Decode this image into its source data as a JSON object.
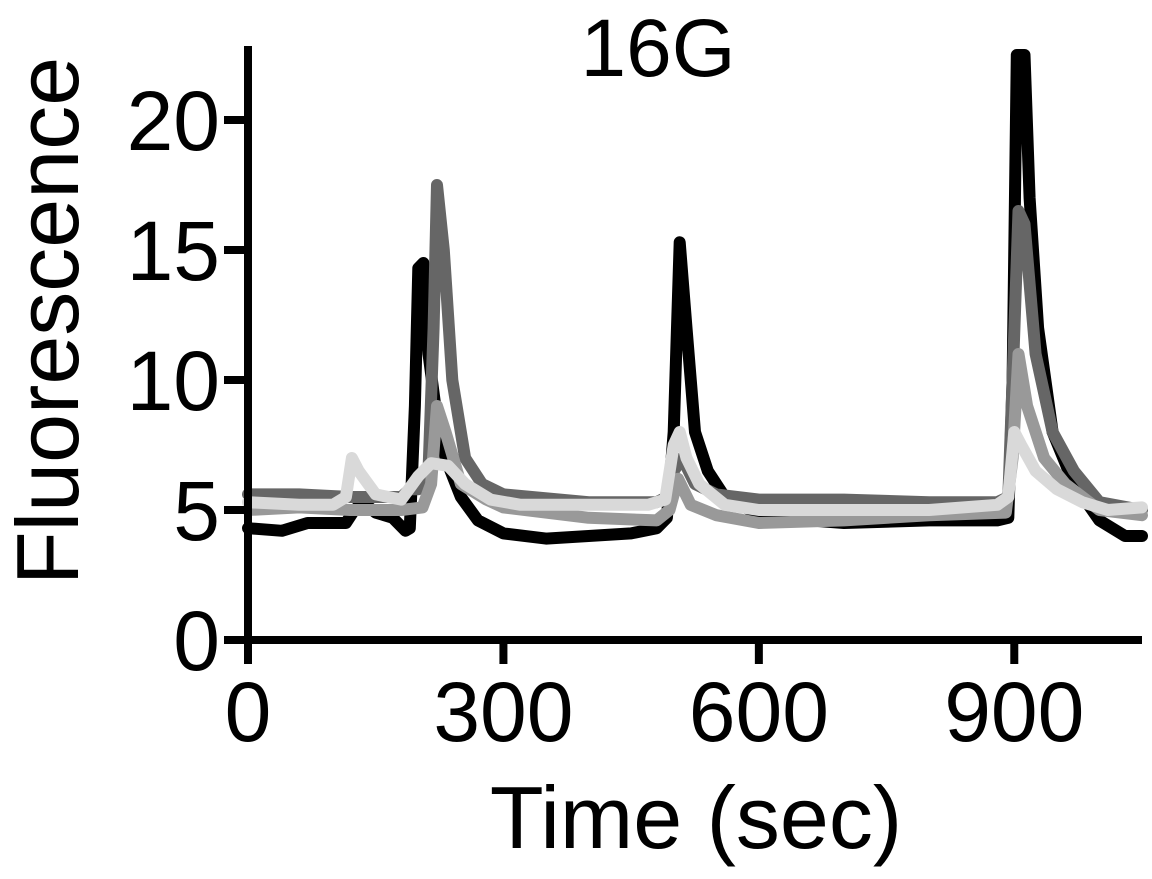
{
  "chart_data": {
    "type": "line",
    "title": "16G",
    "xlabel": "Time (sec)",
    "ylabel": "Fluorescence",
    "xlim": [
      0,
      1050
    ],
    "ylim": [
      0,
      23
    ],
    "xticks": [
      0,
      300,
      600,
      900
    ],
    "yticks": [
      0,
      5,
      10,
      15,
      20
    ],
    "grid": false,
    "legend": "none",
    "colors": [
      "#000000",
      "#666666",
      "#999999",
      "#d9d9d9"
    ],
    "series": [
      {
        "color": "#000000",
        "points": [
          [
            0,
            4.3
          ],
          [
            40,
            4.2
          ],
          [
            70,
            4.5
          ],
          [
            100,
            4.5
          ],
          [
            115,
            4.5
          ],
          [
            125,
            5.0
          ],
          [
            135,
            5.3
          ],
          [
            150,
            4.9
          ],
          [
            170,
            4.7
          ],
          [
            185,
            4.2
          ],
          [
            190,
            4.3
          ],
          [
            196,
            9.0
          ],
          [
            200,
            14.3
          ],
          [
            206,
            14.5
          ],
          [
            212,
            11.0
          ],
          [
            220,
            9.0
          ],
          [
            232,
            7.0
          ],
          [
            250,
            5.5
          ],
          [
            270,
            4.6
          ],
          [
            300,
            4.1
          ],
          [
            350,
            3.9
          ],
          [
            400,
            4.0
          ],
          [
            450,
            4.1
          ],
          [
            480,
            4.3
          ],
          [
            492,
            4.7
          ],
          [
            500,
            8.0
          ],
          [
            507,
            15.3
          ],
          [
            515,
            12.0
          ],
          [
            525,
            8.0
          ],
          [
            540,
            6.5
          ],
          [
            560,
            5.5
          ],
          [
            590,
            5.0
          ],
          [
            620,
            4.7
          ],
          [
            700,
            4.5
          ],
          [
            800,
            4.6
          ],
          [
            880,
            4.6
          ],
          [
            893,
            4.7
          ],
          [
            898,
            10.0
          ],
          [
            903,
            22.5
          ],
          [
            912,
            22.5
          ],
          [
            918,
            17.0
          ],
          [
            928,
            12.0
          ],
          [
            945,
            8.0
          ],
          [
            970,
            6.0
          ],
          [
            1000,
            4.6
          ],
          [
            1030,
            4.0
          ],
          [
            1050,
            4.0
          ]
        ]
      },
      {
        "color": "#666666",
        "points": [
          [
            0,
            5.6
          ],
          [
            60,
            5.6
          ],
          [
            120,
            5.5
          ],
          [
            180,
            5.5
          ],
          [
            190,
            5.8
          ],
          [
            200,
            5.8
          ],
          [
            212,
            6.5
          ],
          [
            218,
            12.0
          ],
          [
            222,
            17.5
          ],
          [
            230,
            15.0
          ],
          [
            240,
            10.0
          ],
          [
            255,
            7.0
          ],
          [
            275,
            6.0
          ],
          [
            300,
            5.6
          ],
          [
            400,
            5.3
          ],
          [
            480,
            5.3
          ],
          [
            492,
            5.5
          ],
          [
            500,
            6.5
          ],
          [
            510,
            7.0
          ],
          [
            525,
            6.0
          ],
          [
            550,
            5.6
          ],
          [
            600,
            5.4
          ],
          [
            700,
            5.4
          ],
          [
            800,
            5.3
          ],
          [
            880,
            5.3
          ],
          [
            893,
            5.5
          ],
          [
            898,
            10.0
          ],
          [
            905,
            16.5
          ],
          [
            912,
            16.0
          ],
          [
            925,
            11.0
          ],
          [
            945,
            8.0
          ],
          [
            970,
            6.5
          ],
          [
            1000,
            5.3
          ],
          [
            1050,
            5.0
          ]
        ]
      },
      {
        "color": "#999999",
        "points": [
          [
            0,
            5.0
          ],
          [
            60,
            5.1
          ],
          [
            120,
            5.0
          ],
          [
            180,
            5.0
          ],
          [
            205,
            5.1
          ],
          [
            215,
            6.0
          ],
          [
            222,
            9.0
          ],
          [
            232,
            8.0
          ],
          [
            250,
            6.0
          ],
          [
            280,
            5.4
          ],
          [
            300,
            5.1
          ],
          [
            400,
            4.7
          ],
          [
            480,
            4.6
          ],
          [
            495,
            5.0
          ],
          [
            505,
            6.2
          ],
          [
            520,
            5.2
          ],
          [
            550,
            4.8
          ],
          [
            600,
            4.5
          ],
          [
            700,
            4.6
          ],
          [
            800,
            4.8
          ],
          [
            890,
            4.9
          ],
          [
            898,
            7.0
          ],
          [
            905,
            11.0
          ],
          [
            915,
            9.0
          ],
          [
            935,
            7.0
          ],
          [
            960,
            6.0
          ],
          [
            1000,
            5.0
          ],
          [
            1050,
            4.8
          ]
        ]
      },
      {
        "color": "#d9d9d9",
        "points": [
          [
            0,
            5.3
          ],
          [
            60,
            5.2
          ],
          [
            100,
            5.2
          ],
          [
            115,
            5.5
          ],
          [
            122,
            7.0
          ],
          [
            130,
            6.5
          ],
          [
            150,
            5.6
          ],
          [
            180,
            5.4
          ],
          [
            200,
            6.3
          ],
          [
            215,
            6.8
          ],
          [
            235,
            6.7
          ],
          [
            255,
            6.0
          ],
          [
            285,
            5.4
          ],
          [
            320,
            5.2
          ],
          [
            400,
            5.2
          ],
          [
            470,
            5.2
          ],
          [
            490,
            5.4
          ],
          [
            500,
            7.5
          ],
          [
            507,
            8.0
          ],
          [
            515,
            7.0
          ],
          [
            530,
            6.0
          ],
          [
            560,
            5.2
          ],
          [
            600,
            5.0
          ],
          [
            700,
            5.0
          ],
          [
            800,
            5.0
          ],
          [
            880,
            5.2
          ],
          [
            893,
            5.5
          ],
          [
            900,
            8.0
          ],
          [
            908,
            7.5
          ],
          [
            925,
            6.5
          ],
          [
            950,
            5.8
          ],
          [
            980,
            5.3
          ],
          [
            1010,
            5.0
          ],
          [
            1050,
            5.1
          ]
        ]
      }
    ]
  }
}
